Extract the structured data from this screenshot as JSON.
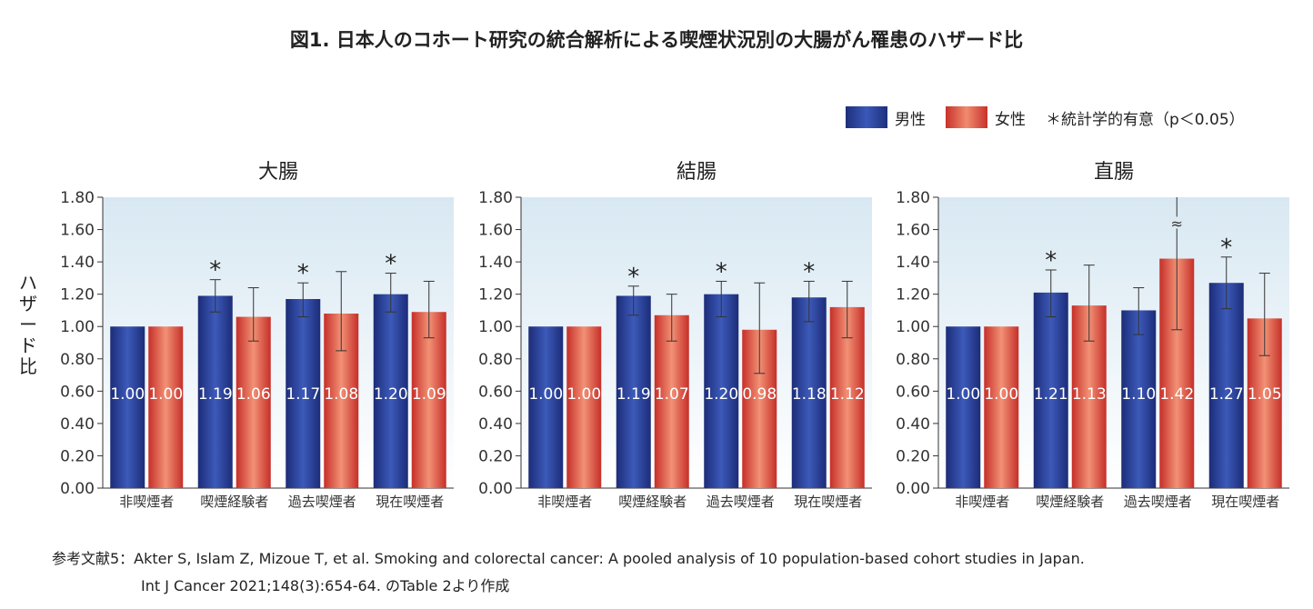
{
  "title": "図1. 日本人のコホート研究の統合解析による喫煙状況別の大腸がん罹患のハザード比",
  "legend": {
    "male": "男性",
    "female": "女性",
    "significance": "＊統計学的有意（p＜0.05）"
  },
  "y_axis_label": "ハザード比",
  "reference": {
    "line1": "参考文献5：Akter S, Islam Z, Mizoue T, et al. Smoking and colorectal cancer: A pooled analysis of 10 population-based cohort studies in Japan.",
    "line2": "Int J Cancer 2021;148(3):654-64. のTable 2より作成"
  },
  "colors": {
    "male": "#2b428f",
    "female": "#de4a3c",
    "plot_bg_top": "#dcebf4",
    "plot_bg_bottom": "#ffffff"
  },
  "chart_data": [
    {
      "type": "bar",
      "title": "大腸",
      "categories": [
        "非喫煙者",
        "喫煙経験者",
        "過去喫煙者",
        "現在喫煙者"
      ],
      "ylim": [
        0,
        1.8
      ],
      "yticks": [
        "0.00",
        "0.20",
        "0.40",
        "0.60",
        "0.80",
        "1.00",
        "1.20",
        "1.40",
        "1.60",
        "1.80"
      ],
      "series": [
        {
          "name": "男性",
          "values": [
            1.0,
            1.19,
            1.17,
            1.2
          ],
          "labels": [
            "1.00",
            "1.19",
            "1.17",
            "1.20"
          ],
          "ci_low": [
            null,
            1.09,
            1.06,
            1.09
          ],
          "ci_high": [
            null,
            1.29,
            1.27,
            1.33
          ],
          "significant": [
            false,
            true,
            true,
            true
          ]
        },
        {
          "name": "女性",
          "values": [
            1.0,
            1.06,
            1.08,
            1.09
          ],
          "labels": [
            "1.00",
            "1.06",
            "1.08",
            "1.09"
          ],
          "ci_low": [
            null,
            0.91,
            0.85,
            0.93
          ],
          "ci_high": [
            null,
            1.24,
            1.34,
            1.28
          ],
          "significant": [
            false,
            false,
            false,
            false
          ]
        }
      ]
    },
    {
      "type": "bar",
      "title": "結腸",
      "categories": [
        "非喫煙者",
        "喫煙経験者",
        "過去喫煙者",
        "現在喫煙者"
      ],
      "ylim": [
        0,
        1.8
      ],
      "yticks": [
        "0.00",
        "0.20",
        "0.40",
        "0.60",
        "0.80",
        "1.00",
        "1.20",
        "1.40",
        "1.60",
        "1.80"
      ],
      "series": [
        {
          "name": "男性",
          "values": [
            1.0,
            1.19,
            1.2,
            1.18
          ],
          "labels": [
            "1.00",
            "1.19",
            "1.20",
            "1.18"
          ],
          "ci_low": [
            null,
            1.07,
            1.06,
            1.03
          ],
          "ci_high": [
            null,
            1.25,
            1.28,
            1.28
          ],
          "significant": [
            false,
            true,
            true,
            true
          ]
        },
        {
          "name": "女性",
          "values": [
            1.0,
            1.07,
            0.98,
            1.12
          ],
          "labels": [
            "1.00",
            "1.07",
            "0.98",
            "1.12"
          ],
          "ci_low": [
            null,
            0.91,
            0.71,
            0.93
          ],
          "ci_high": [
            null,
            1.2,
            1.27,
            1.28
          ],
          "significant": [
            false,
            false,
            false,
            false
          ]
        }
      ]
    },
    {
      "type": "bar",
      "title": "直腸",
      "categories": [
        "非喫煙者",
        "喫煙経験者",
        "過去喫煙者",
        "現在喫煙者"
      ],
      "ylim": [
        0,
        1.8
      ],
      "yticks": [
        "0.00",
        "0.20",
        "0.40",
        "0.60",
        "0.80",
        "1.00",
        "1.20",
        "1.40",
        "1.60",
        "1.80"
      ],
      "break_mark": "≈",
      "series": [
        {
          "name": "男性",
          "values": [
            1.0,
            1.21,
            1.1,
            1.27
          ],
          "labels": [
            "1.00",
            "1.21",
            "1.10",
            "1.27"
          ],
          "ci_low": [
            null,
            1.06,
            0.95,
            1.11
          ],
          "ci_high": [
            null,
            1.35,
            1.24,
            1.43
          ],
          "significant": [
            false,
            true,
            false,
            true
          ]
        },
        {
          "name": "女性",
          "values": [
            1.0,
            1.13,
            1.42,
            1.05
          ],
          "labels": [
            "1.00",
            "1.13",
            "1.42",
            "1.05"
          ],
          "ci_low": [
            null,
            0.91,
            0.98,
            0.82
          ],
          "ci_high": [
            null,
            1.38,
            1.8,
            1.33
          ],
          "significant": [
            false,
            false,
            false,
            false
          ]
        }
      ]
    }
  ]
}
